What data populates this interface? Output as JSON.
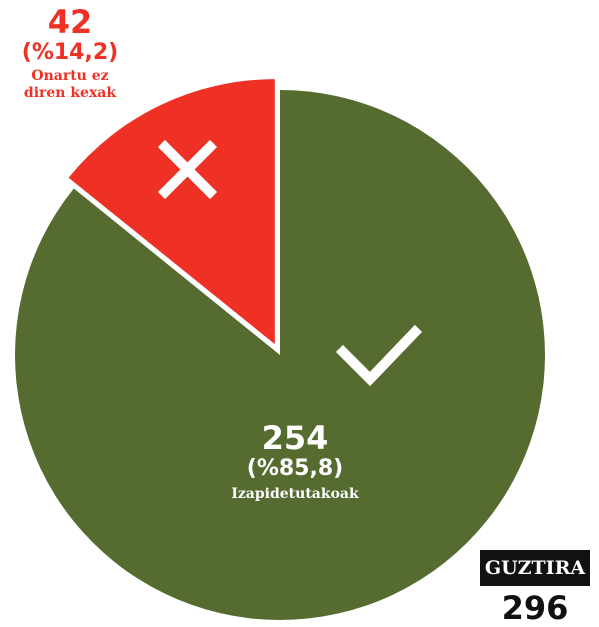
{
  "chart_data": {
    "type": "pie",
    "categories": [
      "Izapidetutakoak",
      "Onartu ez diren kexak"
    ],
    "values": [
      254,
      42
    ],
    "percent_labels": [
      "(%85,8)",
      "(%14,2)"
    ],
    "colors": [
      "#566b30",
      "#ee3124"
    ],
    "total_label": "GUZTIRA",
    "total": 296
  }
}
